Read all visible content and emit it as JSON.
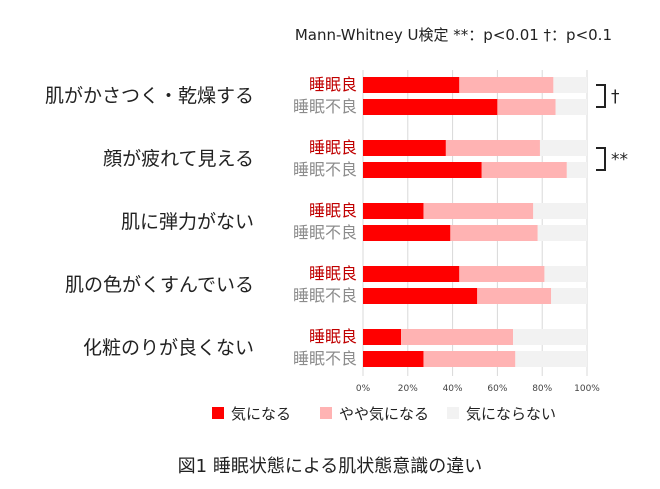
{
  "note": "Mann-Whitney U検定 **：p<0.01 †：p<0.1",
  "caption": "図1 睡眠状態による肌状態意識の違い",
  "colors": {
    "concerned": "#ff0000",
    "somewhat": "#ffb3b3",
    "not_concerned": "#f2f2f2",
    "good_label": "#c00000",
    "poor_label": "#8c8c8c",
    "grid": "#d9d9d9"
  },
  "chart_data": {
    "type": "bar",
    "orientation": "horizontal",
    "stacked": true,
    "percent": true,
    "xlim": [
      0,
      100
    ],
    "xticks": [
      "0%",
      "20%",
      "40%",
      "60%",
      "80%",
      "100%"
    ],
    "grid": true,
    "legend_position": "bottom",
    "groups": [
      "睡眠良",
      "睡眠不良"
    ],
    "series_names": [
      "気になる",
      "やや気になる",
      "気にならない"
    ],
    "categories": [
      {
        "label": "肌がかさつく・乾燥する",
        "significance": "†",
        "bars": [
          {
            "group": "睡眠良",
            "values": [
              43,
              42,
              15
            ]
          },
          {
            "group": "睡眠不良",
            "values": [
              60,
              26,
              14
            ]
          }
        ]
      },
      {
        "label": "顔が疲れて見える",
        "significance": "**",
        "bars": [
          {
            "group": "睡眠良",
            "values": [
              37,
              42,
              21
            ]
          },
          {
            "group": "睡眠不良",
            "values": [
              53,
              38,
              9
            ]
          }
        ]
      },
      {
        "label": "肌に弾力がない",
        "significance": "",
        "bars": [
          {
            "group": "睡眠良",
            "values": [
              27,
              49,
              24
            ]
          },
          {
            "group": "睡眠不良",
            "values": [
              39,
              39,
              22
            ]
          }
        ]
      },
      {
        "label": "肌の色がくすんでいる",
        "significance": "",
        "bars": [
          {
            "group": "睡眠良",
            "values": [
              43,
              38,
              19
            ]
          },
          {
            "group": "睡眠不良",
            "values": [
              51,
              33,
              16
            ]
          }
        ]
      },
      {
        "label": "化粧のりが良くない",
        "significance": "",
        "bars": [
          {
            "group": "睡眠良",
            "values": [
              17,
              50,
              33
            ]
          },
          {
            "group": "睡眠不良",
            "values": [
              27,
              41,
              32
            ]
          }
        ]
      }
    ]
  }
}
